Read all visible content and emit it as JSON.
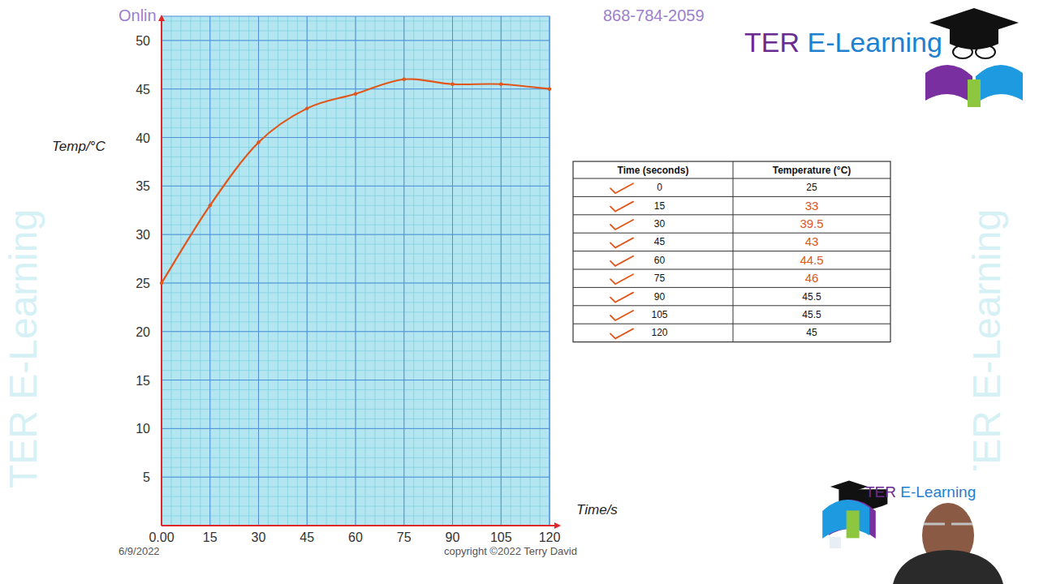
{
  "chart_data": {
    "type": "line",
    "x_label": "Time/s",
    "y_label": "Temp/°C",
    "x": [
      0,
      15,
      30,
      45,
      60,
      75,
      90,
      105,
      120
    ],
    "values": [
      25,
      33,
      39.5,
      43,
      44.5,
      46,
      45.5,
      45.5,
      45
    ],
    "color": "#e0561b",
    "marker": "dot",
    "line_style": "smooth",
    "xlim": [
      0,
      120
    ],
    "ylim": [
      0,
      52.5
    ],
    "xticks": [
      {
        "value": 0,
        "label": "0.00"
      },
      15,
      30,
      45,
      60,
      75,
      90,
      105,
      120
    ],
    "yticks": [
      5,
      10,
      15,
      20,
      25,
      30,
      35,
      40,
      45,
      50
    ],
    "grid": true
  },
  "page": {
    "header": "Onlin",
    "phone": "868-784-2059",
    "brand": "TER E-Learning",
    "date": "6/9/2022",
    "copyright": "copyright ©2022 Terry David",
    "watermark": "TER E-Learning"
  },
  "table": {
    "columns": [
      "Time (seconds)",
      "Temperature (°C)"
    ],
    "rows": [
      {
        "time": "0",
        "temperature": "25",
        "filled_in": false
      },
      {
        "time": "15",
        "temperature": "33",
        "filled_in": true
      },
      {
        "time": "30",
        "temperature": "39.5",
        "filled_in": true
      },
      {
        "time": "45",
        "temperature": "43",
        "filled_in": true
      },
      {
        "time": "60",
        "temperature": "44.5",
        "filled_in": true
      },
      {
        "time": "75",
        "temperature": "46",
        "filled_in": true
      },
      {
        "time": "90",
        "temperature": "45.5",
        "filled_in": false
      },
      {
        "time": "105",
        "temperature": "45.5",
        "filled_in": false
      },
      {
        "time": "120",
        "temperature": "45",
        "filled_in": false
      }
    ]
  }
}
